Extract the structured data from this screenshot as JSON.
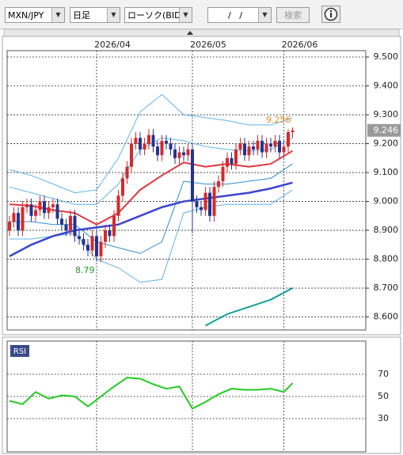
{
  "toolbar": {
    "pair": "MXN/JPY",
    "period": "日足",
    "chart_kind": "ローソク(BID)",
    "date_field": "/   /",
    "search": "検索"
  },
  "chart_data": [
    {
      "type": "candlestick",
      "categories": [
        null,
        null,
        null,
        null,
        null,
        null,
        null,
        null,
        null,
        null,
        null,
        null,
        null,
        null,
        null,
        null,
        null,
        null,
        null,
        null,
        null,
        null,
        null,
        null,
        null,
        null,
        null,
        null,
        null,
        null,
        null,
        null,
        null,
        null,
        null,
        null,
        null,
        null,
        null,
        null,
        null,
        null,
        null,
        null,
        null,
        null,
        null,
        null,
        null,
        null,
        null,
        null,
        null,
        null,
        null,
        null,
        null,
        null,
        null,
        null,
        null,
        null,
        null,
        null,
        null,
        null
      ],
      "xticks": [
        {
          "value": 20,
          "label": "2026/04"
        },
        {
          "value": 42,
          "label": "2026/05"
        },
        {
          "value": 63,
          "label": "2026/06"
        }
      ],
      "open": [
        8.9,
        8.93,
        8.96,
        8.9,
        8.98,
        8.99,
        8.95,
        8.97,
        9.0,
        8.96,
        8.98,
        8.99,
        8.94,
        8.92,
        8.9,
        8.95,
        8.88,
        8.87,
        8.85,
        8.83,
        8.88,
        8.81,
        8.86,
        8.9,
        8.88,
        8.95,
        9.02,
        9.08,
        9.12,
        9.2,
        9.22,
        9.18,
        9.2,
        9.23,
        9.19,
        9.16,
        9.21,
        9.2,
        9.18,
        9.15,
        9.17,
        9.16,
        9.18,
        9.0,
        8.98,
        8.97,
        9.03,
        8.95,
        9.05,
        9.07,
        9.12,
        9.15,
        9.13,
        9.18,
        9.2,
        9.16,
        9.19,
        9.18,
        9.21,
        9.17,
        9.2,
        9.19,
        9.21,
        9.17,
        9.19,
        9.24
      ],
      "high": [
        8.95,
        8.98,
        8.98,
        9.0,
        9.01,
        9.01,
        8.99,
        9.02,
        9.02,
        9.0,
        9.01,
        9.01,
        8.96,
        8.94,
        8.97,
        8.97,
        8.9,
        8.89,
        8.87,
        8.9,
        8.9,
        8.88,
        8.92,
        8.92,
        8.97,
        9.04,
        9.1,
        9.14,
        9.22,
        9.24,
        9.24,
        9.22,
        9.25,
        9.25,
        9.21,
        9.23,
        9.23,
        9.22,
        9.2,
        9.19,
        9.19,
        9.2,
        9.2,
        9.02,
        9.0,
        9.05,
        9.05,
        9.07,
        9.09,
        9.14,
        9.17,
        9.17,
        9.2,
        9.22,
        9.22,
        9.21,
        9.21,
        9.23,
        9.23,
        9.22,
        9.22,
        9.23,
        9.23,
        9.21,
        9.25,
        9.256
      ],
      "low": [
        8.88,
        8.91,
        8.88,
        8.88,
        8.96,
        8.93,
        8.93,
        8.95,
        8.94,
        8.94,
        8.96,
        8.92,
        8.9,
        8.88,
        8.88,
        8.86,
        8.85,
        8.83,
        8.81,
        8.81,
        8.791,
        8.79,
        8.84,
        8.86,
        8.86,
        8.93,
        9.0,
        9.06,
        9.1,
        9.18,
        9.16,
        9.16,
        9.18,
        9.17,
        9.14,
        9.14,
        9.18,
        9.16,
        9.13,
        9.13,
        9.14,
        9.14,
        8.89,
        8.96,
        8.95,
        8.95,
        8.93,
        8.93,
        9.03,
        9.05,
        9.1,
        9.11,
        9.11,
        9.16,
        9.14,
        9.14,
        9.16,
        9.16,
        9.15,
        9.15,
        9.17,
        9.17,
        9.15,
        9.15,
        9.17,
        9.22
      ],
      "close": [
        8.93,
        8.96,
        8.9,
        8.98,
        8.99,
        8.95,
        8.97,
        9.0,
        8.96,
        8.98,
        8.99,
        8.94,
        8.92,
        8.9,
        8.95,
        8.88,
        8.87,
        8.85,
        8.83,
        8.88,
        8.81,
        8.86,
        8.9,
        8.88,
        8.95,
        9.02,
        9.08,
        9.12,
        9.2,
        9.22,
        9.18,
        9.2,
        9.23,
        9.19,
        9.16,
        9.21,
        9.2,
        9.18,
        9.15,
        9.17,
        9.16,
        9.18,
        9.0,
        8.98,
        8.97,
        9.03,
        8.95,
        9.05,
        9.07,
        9.12,
        9.15,
        9.13,
        9.18,
        9.2,
        9.16,
        9.19,
        9.18,
        9.21,
        9.17,
        9.2,
        9.19,
        9.21,
        9.17,
        9.19,
        9.24,
        9.246
      ],
      "up_color": "#d42a2a",
      "down_color": "#23338f",
      "overlays": [
        {
          "x": [
            0,
            5,
            10,
            15,
            20,
            25,
            30,
            35,
            40,
            45,
            50,
            55,
            60,
            65
          ],
          "values": [
            9.11,
            9.09,
            9.06,
            9.03,
            9.04,
            9.15,
            9.31,
            9.37,
            9.3,
            9.29,
            9.28,
            9.265,
            9.265,
            9.29
          ],
          "color": "#5ab4ec",
          "width": 1
        },
        {
          "x": [
            0,
            5,
            10,
            15,
            20,
            25,
            30,
            35,
            40,
            45,
            50,
            55,
            60,
            65
          ],
          "values": [
            9.05,
            9.03,
            9.01,
            8.99,
            8.99,
            9.06,
            9.18,
            9.22,
            9.21,
            9.19,
            9.18,
            9.175,
            9.18,
            9.22
          ],
          "color": "#5ab4ec",
          "width": 1
        },
        {
          "x": [
            0,
            5,
            10,
            15,
            20,
            25,
            30,
            35,
            40,
            45,
            50,
            55,
            60,
            65
          ],
          "values": [
            8.93,
            8.93,
            8.92,
            8.92,
            8.86,
            8.84,
            8.82,
            8.86,
            9.07,
            9.06,
            9.06,
            9.07,
            9.08,
            9.13
          ],
          "color": "#2f8fd6",
          "width": 1
        },
        {
          "x": [
            0,
            5,
            10,
            15,
            20,
            25,
            30,
            35,
            40,
            45,
            50,
            55,
            60,
            65
          ],
          "values": [
            8.87,
            8.87,
            8.88,
            8.89,
            8.8,
            8.77,
            8.72,
            8.73,
            8.96,
            8.98,
            8.99,
            8.99,
            8.99,
            9.04
          ],
          "color": "#5ab4ec",
          "width": 1
        },
        {
          "x": [
            0,
            5,
            10,
            15,
            20,
            25,
            30,
            35,
            40,
            45,
            50,
            55,
            60,
            65
          ],
          "values": [
            8.99,
            8.985,
            8.97,
            8.96,
            8.92,
            8.96,
            9.04,
            9.09,
            9.135,
            9.12,
            9.13,
            9.12,
            9.13,
            9.175
          ],
          "color": "#e0363c",
          "width": 2
        },
        {
          "x": [
            0,
            5,
            10,
            15,
            20,
            25,
            30,
            35,
            40,
            45,
            50,
            55,
            60,
            65
          ],
          "values": [
            8.81,
            8.85,
            8.88,
            8.9,
            8.91,
            8.92,
            8.95,
            8.98,
            9.0,
            9.01,
            9.02,
            9.03,
            9.045,
            9.065
          ],
          "color": "#3b45d0",
          "width": 2.5
        },
        {
          "x": [
            45,
            50,
            55,
            60,
            65
          ],
          "values": [
            8.57,
            8.61,
            8.635,
            8.66,
            8.7
          ],
          "color": "#14a09a",
          "width": 2
        }
      ],
      "ylim": [
        8.555,
        9.522
      ],
      "yticks": [
        {
          "value": 8.6,
          "label": "8.600"
        },
        {
          "value": 8.7,
          "label": "8.700"
        },
        {
          "value": 8.8,
          "label": "8.800"
        },
        {
          "value": 8.9,
          "label": "8.900"
        },
        {
          "value": 9.0,
          "label": "9.000"
        },
        {
          "value": 9.1,
          "label": "9.100"
        },
        {
          "value": 9.2,
          "label": "9.200"
        },
        {
          "value": 9.3,
          "label": "9.300"
        },
        {
          "value": 9.4,
          "label": "9.400"
        },
        {
          "value": 9.5,
          "label": "9.500"
        }
      ],
      "grid": true
    },
    {
      "type": "line",
      "title": "RSI",
      "x": [
        0,
        3,
        6,
        9,
        12,
        15,
        18,
        21,
        24,
        27,
        30,
        33,
        36,
        39,
        42,
        45,
        48,
        51,
        54,
        57,
        60,
        63,
        65
      ],
      "values": [
        46,
        43,
        54,
        48,
        51,
        50,
        41,
        50,
        59,
        67,
        66,
        61,
        57,
        59,
        39,
        45,
        52,
        57,
        56,
        56,
        57,
        54,
        62
      ],
      "color": "#22cc22",
      "ylim": [
        0,
        100
      ],
      "yticks": [
        30,
        50,
        70
      ],
      "grid": true
    }
  ]
}
